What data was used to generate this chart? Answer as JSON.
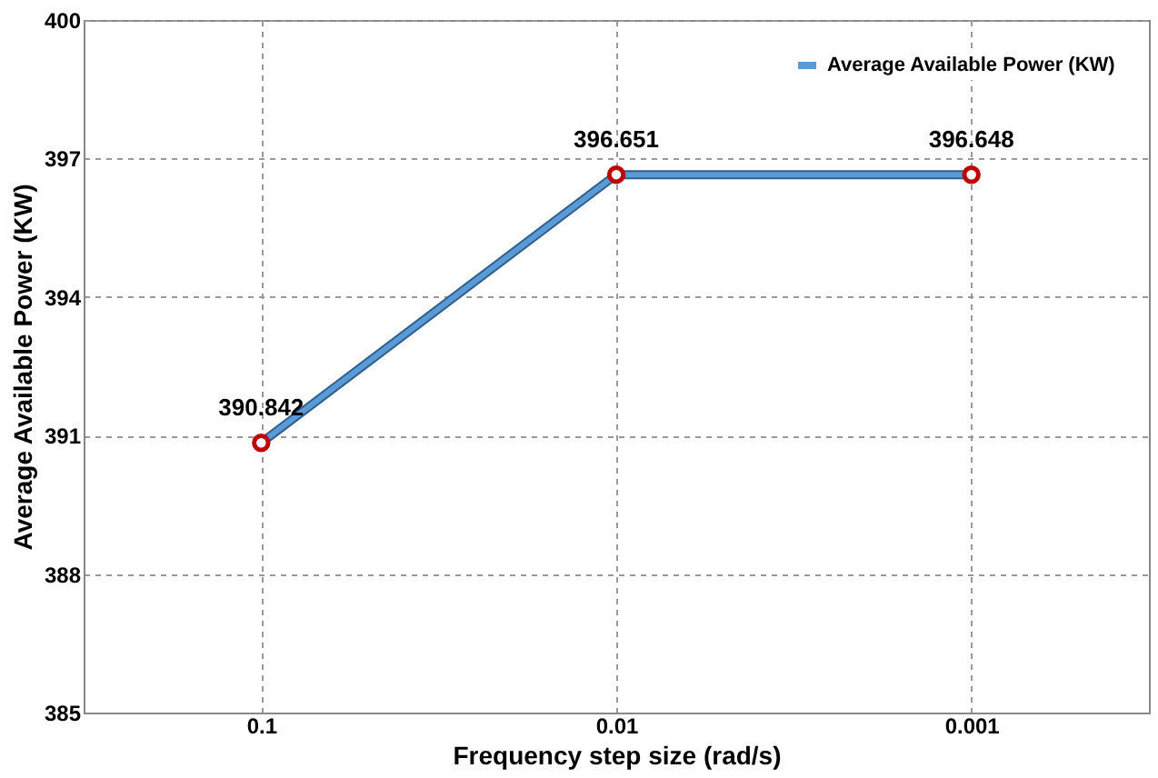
{
  "chart_data": {
    "type": "line",
    "xlabel": "Frequency step size (rad/s)",
    "ylabel": "Average Available Power (KW)",
    "categories": [
      "0.1",
      "0.01",
      "0.001"
    ],
    "series": [
      {
        "name": "Average Available Power (KW)",
        "color": "#5b9bd5",
        "values": [
          390.842,
          396.651,
          396.648
        ]
      }
    ],
    "ylim": [
      385,
      400
    ],
    "yticks": [
      385,
      388,
      391,
      394,
      397,
      400
    ],
    "grid": true,
    "legend": "top right",
    "marker": "circle",
    "line_style": "solid",
    "data_labels": true
  }
}
